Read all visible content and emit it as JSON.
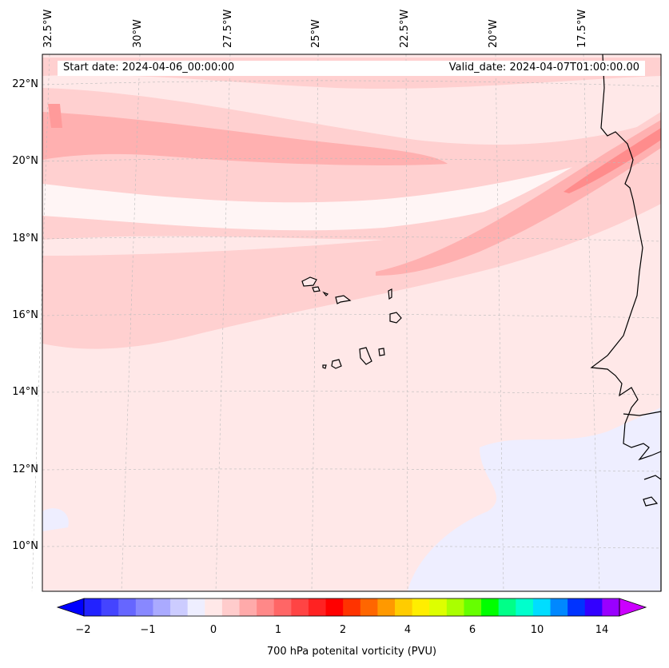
{
  "map": {
    "lon_labels": [
      "32.5°W",
      "30°W",
      "27.5°W",
      "25°W",
      "22.5°W",
      "20°W",
      "17.5°W"
    ],
    "lat_labels": [
      "22°N",
      "20°N",
      "18°N",
      "16°N",
      "14°N",
      "12°N",
      "10°N"
    ],
    "start_date": "Start date: 2024-04-06_00:00:00",
    "valid_date": "Valid_date: 2024-04-07T01:00:00.00",
    "extent": {
      "lon_min": -33.0,
      "lon_max": -15.5,
      "lat_min": 9.0,
      "lat_max": 22.8
    },
    "colors": {
      "background": "#ffe8e8",
      "light": "#ffd0d0",
      "mid": "#ffb0b0",
      "strong": "#ff8c8c",
      "white": "#fff5f5",
      "negative": "#eeeeff",
      "coast": "#000000"
    }
  },
  "colorbar": {
    "label": "700 hPa potenital vorticity (PVU)",
    "ticks": [
      "−2",
      "−1",
      "0",
      "1",
      "2",
      "4",
      "6",
      "10",
      "14"
    ],
    "colors": [
      "#0000ff",
      "#2222ff",
      "#4444ff",
      "#6666ff",
      "#8888ff",
      "#aaaaff",
      "#ccccff",
      "#eeeeff",
      "#ffe8e8",
      "#ffcccc",
      "#ffaaaa",
      "#ff8888",
      "#ff6666",
      "#ff4444",
      "#ff2222",
      "#ff0000",
      "#ff3300",
      "#ff6600",
      "#ff9900",
      "#ffcc00",
      "#ffee00",
      "#ddff00",
      "#aaff00",
      "#66ff00",
      "#00ff00",
      "#00ff88",
      "#00ffcc",
      "#00ddff",
      "#0088ff",
      "#0033ff",
      "#3300ff",
      "#9900ff",
      "#cc00ff"
    ]
  }
}
